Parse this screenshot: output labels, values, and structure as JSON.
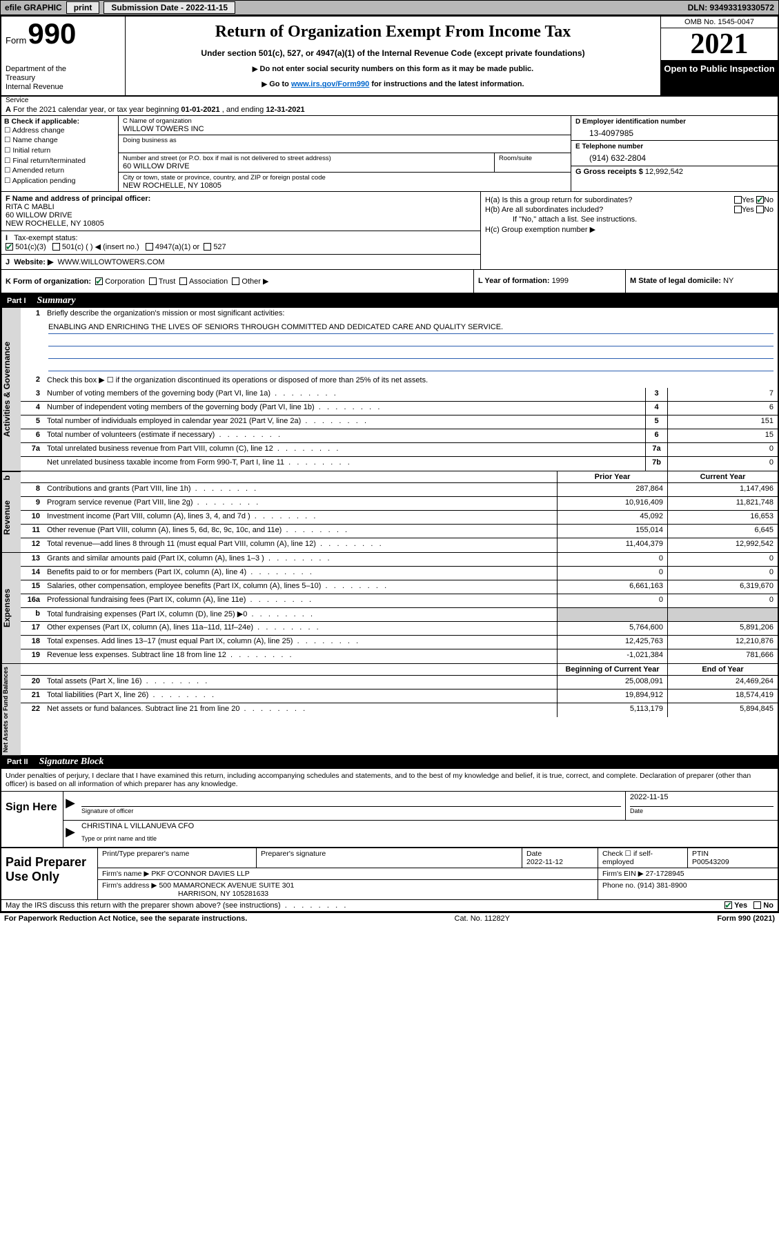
{
  "topbar": {
    "efile": "efile GRAPHIC",
    "print": "print",
    "subdate_lbl": "Submission Date - 2022-11-15",
    "dln": "DLN: 93493319330572"
  },
  "header": {
    "form_word": "Form",
    "form_num": "990",
    "dept": "Department of the Treasury\nInternal Revenue Service",
    "title": "Return of Organization Exempt From Income Tax",
    "sub": "Under section 501(c), 527, or 4947(a)(1) of the Internal Revenue Code (except private foundations)",
    "note1": "Do not enter social security numbers on this form as it may be made public.",
    "note2_pre": "Go to ",
    "note2_link": "www.irs.gov/Form990",
    "note2_post": " for instructions and the latest information.",
    "omb": "OMB No. 1545-0047",
    "year": "2021",
    "open": "Open to Public Inspection"
  },
  "rowA": {
    "pre": "For the 2021 calendar year, or tax year beginning ",
    "begin": "01-01-2021",
    "mid": " , and ending ",
    "end": "12-31-2021"
  },
  "B": {
    "hdr": "B Check if applicable:",
    "items": [
      "Address change",
      "Name change",
      "Initial return",
      "Final return/terminated",
      "Amended return",
      "Application pending"
    ]
  },
  "C": {
    "name_lbl": "C Name of organization",
    "name": "WILLOW TOWERS INC",
    "dba_lbl": "Doing business as",
    "dba": "",
    "street_lbl": "Number and street (or P.O. box if mail is not delivered to street address)",
    "room_lbl": "Room/suite",
    "street": "60 WILLOW DRIVE",
    "city_lbl": "City or town, state or province, country, and ZIP or foreign postal code",
    "city": "NEW ROCHELLE, NY  10805"
  },
  "D": {
    "lbl": "D Employer identification number",
    "val": "13-4097985"
  },
  "E": {
    "lbl": "E Telephone number",
    "val": "(914) 632-2804"
  },
  "G": {
    "lbl": "G Gross receipts $",
    "val": "12,992,542"
  },
  "F": {
    "lbl": "F  Name and address of principal officer:",
    "name": "RITA C MABLI",
    "l1": "60 WILLOW DRIVE",
    "l2": "NEW ROCHELLE, NY  10805"
  },
  "I": {
    "lbl": "Tax-exempt status:",
    "opt1": "501(c)(3)",
    "opt2": "501(c) (   ) ◀ (insert no.)",
    "opt3": "4947(a)(1) or",
    "opt4": "527"
  },
  "J": {
    "lbl": "Website: ▶",
    "val": "WWW.WILLOWTOWERS.COM"
  },
  "H": {
    "a": "H(a)  Is this a group return for subordinates?",
    "b": "H(b)  Are all subordinates included?",
    "bnote": "If \"No,\" attach a list. See instructions.",
    "c": "H(c)  Group exemption number ▶",
    "yes": "Yes",
    "no": "No"
  },
  "K": {
    "lbl": "K Form of organization:",
    "corp": "Corporation",
    "trust": "Trust",
    "assoc": "Association",
    "other": "Other ▶"
  },
  "L": {
    "lbl": "L Year of formation: ",
    "val": "1999"
  },
  "M": {
    "lbl": "M State of legal domicile: ",
    "val": "NY"
  },
  "partI": {
    "num": "Part I",
    "title": "Summary"
  },
  "sec_gov": {
    "tab": "Activities & Governance",
    "l1": "Briefly describe the organization's mission or most significant activities:",
    "mission": "ENABLING AND ENRICHING THE LIVES OF SENIORS THROUGH COMMITTED AND DEDICATED CARE AND QUALITY SERVICE.",
    "l2": "Check this box ▶ ☐  if the organization discontinued its operations or disposed of more than 25% of its net assets.",
    "rows": [
      {
        "n": "3",
        "d": "Number of voting members of the governing body (Part VI, line 1a)",
        "b": "3",
        "v": "7"
      },
      {
        "n": "4",
        "d": "Number of independent voting members of the governing body (Part VI, line 1b)",
        "b": "4",
        "v": "6"
      },
      {
        "n": "5",
        "d": "Total number of individuals employed in calendar year 2021 (Part V, line 2a)",
        "b": "5",
        "v": "151"
      },
      {
        "n": "6",
        "d": "Total number of volunteers (estimate if necessary)",
        "b": "6",
        "v": "15"
      },
      {
        "n": "7a",
        "d": "Total unrelated business revenue from Part VIII, column (C), line 12",
        "b": "7a",
        "v": "0"
      },
      {
        "n": "",
        "d": "Net unrelated business taxable income from Form 990-T, Part I, line 11",
        "b": "7b",
        "v": "0"
      }
    ]
  },
  "colhdr": {
    "prior": "Prior Year",
    "curr": "Current Year",
    "beg": "Beginning of Current Year",
    "end": "End of Year"
  },
  "sec_rev": {
    "tab": "Revenue",
    "rows": [
      {
        "n": "8",
        "d": "Contributions and grants (Part VIII, line 1h)",
        "p": "287,864",
        "c": "1,147,496"
      },
      {
        "n": "9",
        "d": "Program service revenue (Part VIII, line 2g)",
        "p": "10,916,409",
        "c": "11,821,748"
      },
      {
        "n": "10",
        "d": "Investment income (Part VIII, column (A), lines 3, 4, and 7d )",
        "p": "45,092",
        "c": "16,653"
      },
      {
        "n": "11",
        "d": "Other revenue (Part VIII, column (A), lines 5, 6d, 8c, 9c, 10c, and 11e)",
        "p": "155,014",
        "c": "6,645"
      },
      {
        "n": "12",
        "d": "Total revenue—add lines 8 through 11 (must equal Part VIII, column (A), line 12)",
        "p": "11,404,379",
        "c": "12,992,542"
      }
    ]
  },
  "sec_exp": {
    "tab": "Expenses",
    "rows": [
      {
        "n": "13",
        "d": "Grants and similar amounts paid (Part IX, column (A), lines 1–3 )",
        "p": "0",
        "c": "0"
      },
      {
        "n": "14",
        "d": "Benefits paid to or for members (Part IX, column (A), line 4)",
        "p": "0",
        "c": "0"
      },
      {
        "n": "15",
        "d": "Salaries, other compensation, employee benefits (Part IX, column (A), lines 5–10)",
        "p": "6,661,163",
        "c": "6,319,670"
      },
      {
        "n": "16a",
        "d": "Professional fundraising fees (Part IX, column (A), line 11e)",
        "p": "0",
        "c": "0"
      },
      {
        "n": "b",
        "d": "Total fundraising expenses (Part IX, column (D), line 25) ▶0",
        "p": "",
        "c": "",
        "shade": true
      },
      {
        "n": "17",
        "d": "Other expenses (Part IX, column (A), lines 11a–11d, 11f–24e)",
        "p": "5,764,600",
        "c": "5,891,206"
      },
      {
        "n": "18",
        "d": "Total expenses. Add lines 13–17 (must equal Part IX, column (A), line 25)",
        "p": "12,425,763",
        "c": "12,210,876"
      },
      {
        "n": "19",
        "d": "Revenue less expenses. Subtract line 18 from line 12",
        "p": "-1,021,384",
        "c": "781,666"
      }
    ]
  },
  "sec_net": {
    "tab": "Net Assets or Fund Balances",
    "rows": [
      {
        "n": "20",
        "d": "Total assets (Part X, line 16)",
        "p": "25,008,091",
        "c": "24,469,264"
      },
      {
        "n": "21",
        "d": "Total liabilities (Part X, line 26)",
        "p": "19,894,912",
        "c": "18,574,419"
      },
      {
        "n": "22",
        "d": "Net assets or fund balances. Subtract line 21 from line 20",
        "p": "5,113,179",
        "c": "5,894,845"
      }
    ]
  },
  "partII": {
    "num": "Part II",
    "title": "Signature Block"
  },
  "sig": {
    "decl": "Under penalties of perjury, I declare that I have examined this return, including accompanying schedules and statements, and to the best of my knowledge and belief, it is true, correct, and complete. Declaration of preparer (other than officer) is based on all information of which preparer has any knowledge.",
    "here": "Sign Here",
    "sig_of": "Signature of officer",
    "date_lbl": "Date",
    "date": "2022-11-15",
    "name": "CHRISTINA L VILLANUEVA  CFO",
    "name_lbl": "Type or print name and title"
  },
  "paid": {
    "hdr": "Paid Preparer Use Only",
    "r1": {
      "c1": "Print/Type preparer's name",
      "c2": "Preparer's signature",
      "c3": "Date",
      "c3v": "2022-11-12",
      "c4": "Check ☐ if self-employed",
      "c5": "PTIN",
      "c5v": "P00543209"
    },
    "r2": {
      "lbl": "Firm's name    ▶",
      "val": "PKF O'CONNOR DAVIES LLP",
      "ein_lbl": "Firm's EIN ▶",
      "ein": "27-1728945"
    },
    "r3": {
      "lbl": "Firm's address ▶",
      "val": "500 MAMARONECK AVENUE SUITE 301",
      "ph_lbl": "Phone no.",
      "ph": "(914) 381-8900"
    },
    "r3b": "HARRISON, NY  105281633"
  },
  "discuss": {
    "q": "May the IRS discuss this return with the preparer shown above? (see instructions)",
    "yes": "Yes",
    "no": "No"
  },
  "footer": {
    "l": "For Paperwork Reduction Act Notice, see the separate instructions.",
    "m": "Cat. No. 11282Y",
    "r": "Form 990 (2021)"
  }
}
